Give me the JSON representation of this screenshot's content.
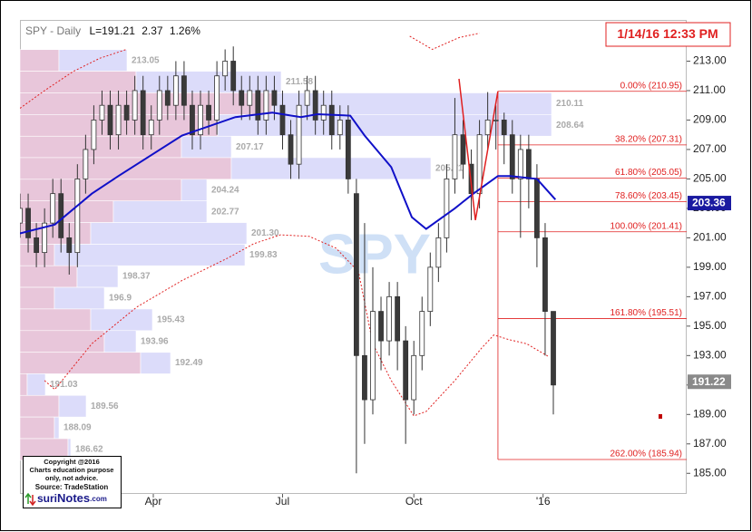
{
  "chart_data": {
    "type": "candlestick",
    "title": "SPY - Daily",
    "header_values": [
      "L=191.21",
      "2.37",
      "1.26%"
    ],
    "timestamp": "1/14/16 12:33 PM",
    "watermark": "SPY",
    "notes": [
      "Copyright @2016",
      "Charts education purpose",
      "only, not advice.",
      "Source: TradeStation"
    ],
    "logo": [
      "suri",
      "Notes",
      ".com"
    ],
    "x": [
      0,
      4,
      8,
      12,
      16,
      20,
      24,
      28,
      32,
      36,
      40,
      44,
      48,
      52,
      56,
      60,
      64,
      68,
      72,
      76,
      80,
      84,
      88,
      92,
      96,
      100,
      104,
      108,
      112,
      116,
      120,
      124,
      128,
      132,
      136,
      140,
      144,
      148,
      152,
      156,
      160,
      164,
      168,
      172,
      176,
      180,
      184,
      188,
      192,
      196,
      200,
      204,
      208,
      212,
      216,
      220,
      224,
      228,
      232,
      236,
      240,
      244,
      248,
      252,
      256,
      260
    ],
    "open": [
      202,
      203,
      201,
      200,
      202,
      204,
      201,
      200,
      205,
      207,
      209,
      210,
      208,
      210,
      209,
      211,
      208,
      209,
      211,
      210,
      212,
      210,
      208,
      210,
      209,
      212,
      213,
      211,
      210,
      211,
      209,
      211,
      210,
      208,
      206,
      210,
      211,
      209,
      210,
      208,
      209,
      204,
      193,
      190,
      196,
      194,
      197,
      194,
      190,
      193,
      196,
      199,
      201,
      205,
      208,
      206,
      204,
      208,
      209,
      209,
      208,
      205,
      207,
      205,
      201,
      196
    ],
    "high": [
      204,
      204,
      202,
      203,
      205,
      205,
      202,
      206,
      208,
      210,
      211,
      211,
      211,
      211,
      212,
      212,
      210,
      212,
      212,
      213,
      213,
      211,
      211,
      211,
      213,
      213.8,
      214,
      212,
      212,
      212,
      212,
      212,
      211,
      209,
      211,
      212,
      212,
      211,
      211,
      210,
      210,
      205,
      202,
      199,
      197,
      198,
      198,
      195,
      194,
      197,
      200,
      202,
      206,
      210.5,
      209,
      207,
      209,
      210.9,
      210,
      209.5,
      209,
      208,
      208,
      206,
      202,
      196
    ],
    "low": [
      201,
      200,
      199,
      199,
      201,
      200,
      198.5,
      199,
      204,
      206,
      208,
      207,
      207,
      208,
      208,
      207,
      207,
      208,
      209,
      209,
      209,
      207,
      207,
      208,
      208,
      211,
      210,
      209,
      209,
      208,
      208,
      209,
      207,
      205,
      205,
      209,
      208,
      208,
      207,
      207,
      204,
      185,
      187,
      189,
      192,
      193,
      192,
      187,
      189,
      192,
      195,
      198,
      200,
      204,
      205,
      202.2,
      203,
      207,
      207,
      206,
      204,
      201,
      203,
      199,
      193,
      189
    ],
    "close": [
      203,
      201,
      200,
      202,
      204,
      201,
      200,
      205,
      207,
      209,
      210,
      208,
      210,
      209,
      211,
      208,
      209,
      211,
      210,
      212,
      210,
      208,
      210,
      209,
      212,
      213,
      211,
      210,
      211,
      209,
      211,
      210,
      208,
      206,
      210,
      211,
      209,
      210,
      208,
      209,
      205,
      193,
      190,
      196,
      194,
      197,
      194,
      190,
      193,
      196,
      199,
      201,
      205,
      208,
      206,
      204,
      208,
      209,
      209,
      208,
      205,
      207,
      205,
      201,
      196,
      191
    ],
    "candle_colors": {
      "up": "#ffffff",
      "down": "#3a3a3a",
      "wick": "#333333"
    },
    "moving_average": {
      "color": "#1010c8",
      "x": [
        0,
        17,
        35,
        48,
        79,
        105,
        123,
        137,
        145,
        161,
        168,
        181,
        191,
        198,
        212,
        221,
        233,
        239,
        252,
        261
      ],
      "values": [
        201.3,
        201.9,
        204,
        205.2,
        207.95,
        209.2,
        209.5,
        209.2,
        209.4,
        209.3,
        207.95,
        205.8,
        202.4,
        201.6,
        203,
        204,
        205.2,
        205.2,
        205,
        203.6
      ]
    },
    "band_upper": {
      "color": "#e02020",
      "x": [
        0,
        12,
        26,
        39,
        52,
        62,
        190,
        201,
        214,
        224
      ],
      "values": [
        209.8,
        211,
        212.3,
        213.2,
        213.8,
        null,
        214.7,
        213.8,
        214.6,
        214.9
      ]
    },
    "band_lower": {
      "color": "#e02020",
      "x": [
        12,
        17,
        35,
        57,
        79,
        101,
        114,
        127,
        141,
        154,
        165,
        172,
        181,
        192,
        198,
        212,
        225,
        231,
        238,
        247,
        258
      ],
      "values": [
        191.3,
        190.7,
        193.8,
        196.3,
        198.1,
        199.6,
        200.6,
        201.2,
        201.1,
        200.3,
        198.7,
        193.8,
        191.3,
        188.9,
        189.2,
        191.3,
        193.5,
        194.4,
        194.1,
        193.8,
        192.9
      ]
    },
    "swing": {
      "color": "#e02020",
      "x": [
        214,
        222,
        233
      ],
      "values": [
        211.8,
        202.2,
        210.95
      ]
    },
    "fibonacci": {
      "color": "#e02020",
      "levels": [
        {
          "value": 210.95,
          "label": "0.00% (210.95)"
        },
        {
          "value": 207.31,
          "label": "38.20% (207.31)"
        },
        {
          "value": 205.05,
          "label": "61.80% (205.05)"
        },
        {
          "value": 203.45,
          "label": "78.60% (203.45)"
        },
        {
          "value": 201.41,
          "label": "100.00% (201.41)"
        },
        {
          "value": 195.51,
          "label": "161.80% (195.51)"
        },
        {
          "value": 185.94,
          "label": "262.00% (185.94)"
        }
      ]
    },
    "volume_profile": {
      "colors": {
        "down": "#e8c6da",
        "up": "#dcdcfa"
      },
      "prices": [
        213.05,
        211.58,
        210.11,
        208.64,
        207.17,
        205.71,
        204.24,
        202.77,
        {
          "value": 201.3,
          "label": "201.30"
        },
        199.83,
        198.37,
        196.9,
        195.43,
        193.96,
        192.49,
        191.03,
        189.56,
        188.09,
        186.62
      ],
      "down": [
        43,
        128,
        278,
        218,
        178,
        233,
        178,
        103,
        78,
        38,
        63,
        38,
        78,
        93,
        133,
        8,
        43,
        38,
        53
      ],
      "up": [
        75,
        160,
        308,
        368,
        55,
        220,
        28,
        103,
        172,
        210,
        45,
        55,
        68,
        35,
        33,
        20,
        30,
        5,
        3
      ]
    },
    "price_tags": [
      {
        "value": 203.36,
        "color": "#1a1aa0"
      },
      {
        "value": 191.22,
        "color": "#8a8a8a"
      }
    ],
    "xlim": [
      0,
      325
    ],
    "xticks": [
      {
        "value": 65,
        "label": "Apr"
      },
      {
        "value": 128,
        "label": "Jul"
      },
      {
        "value": 192,
        "label": "Oct"
      },
      {
        "value": 255,
        "label": "'16"
      }
    ],
    "ylim": [
      183.6,
      215.8
    ],
    "yticks": [
      {
        "value": 185,
        "label": "185.00"
      },
      {
        "value": 187,
        "label": "187.00"
      },
      {
        "value": 189,
        "label": "189.00"
      },
      {
        "value": 191,
        "label": "191.00"
      },
      {
        "value": 193,
        "label": "193.00"
      },
      {
        "value": 195,
        "label": "195.00"
      },
      {
        "value": 197,
        "label": "197.00"
      },
      {
        "value": 199,
        "label": "199.00"
      },
      {
        "value": 201,
        "label": "201.00"
      },
      {
        "value": 203,
        "label": "203.00"
      },
      {
        "value": 205,
        "label": "205.00"
      },
      {
        "value": 207,
        "label": "207.00"
      },
      {
        "value": 209,
        "label": "209.00"
      },
      {
        "value": 211,
        "label": "211.00"
      },
      {
        "value": 213,
        "label": "213.00"
      }
    ],
    "grid": false
  }
}
